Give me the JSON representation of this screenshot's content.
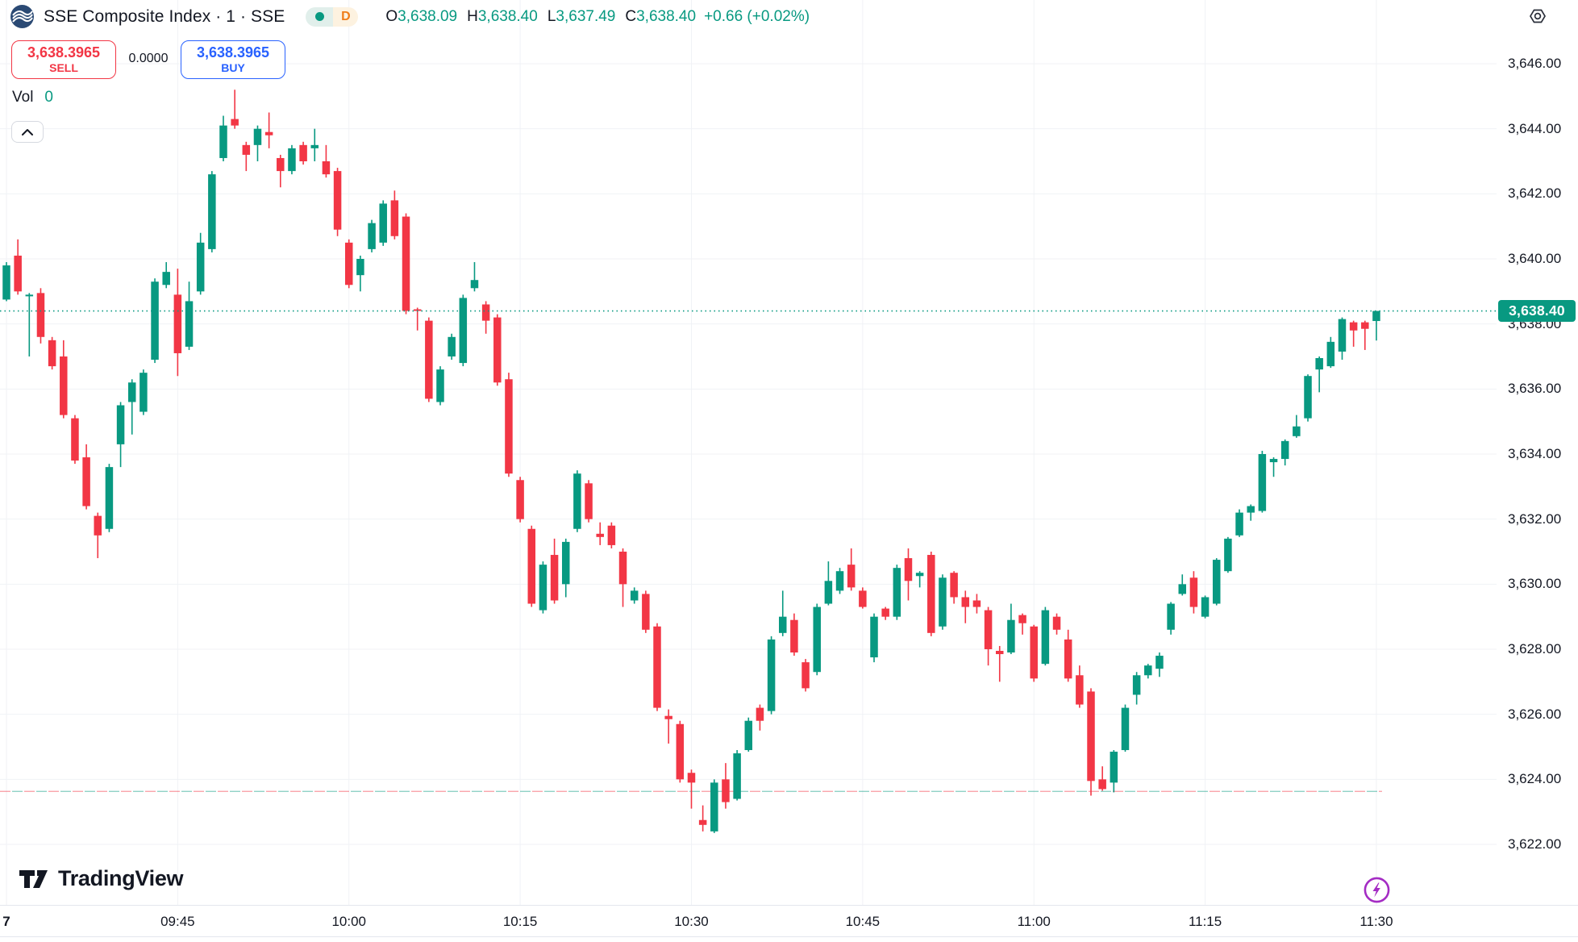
{
  "header": {
    "title": "SSE Composite Index · 1 · SSE",
    "timeframe_badge": "D",
    "ohlc": {
      "o_label": "O",
      "o": "3,638.09",
      "h_label": "H",
      "h": "3,638.40",
      "l_label": "L",
      "l": "3,637.49",
      "c_label": "C",
      "c": "3,638.40",
      "change": "+0.66 (+0.02%)"
    }
  },
  "trade_panel": {
    "sell_price": "3,638.3965",
    "sell_label": "SELL",
    "spread": "0.0000",
    "buy_price": "3,638.3965",
    "buy_label": "BUY"
  },
  "volume": {
    "label": "Vol",
    "value": "0"
  },
  "footer": {
    "brand": "TradingView"
  },
  "colors": {
    "up": "#089981",
    "down": "#f23645",
    "accent_buy": "#2962ff",
    "badge_bg": "#089981",
    "grid": "#f0f2f6",
    "text": "#131722",
    "boost_purple": "#a42cc4",
    "delayed_orange": "#ef7d1a"
  },
  "price_scale": {
    "last_price_label": "3,638.40",
    "ticks": [
      {
        "label": "3,646.00",
        "value": 3646
      },
      {
        "label": "3,644.00",
        "value": 3644
      },
      {
        "label": "3,642.00",
        "value": 3642
      },
      {
        "label": "3,640.00",
        "value": 3640
      },
      {
        "label": "3,638.00",
        "value": 3638
      },
      {
        "label": "3,636.00",
        "value": 3636
      },
      {
        "label": "3,634.00",
        "value": 3634
      },
      {
        "label": "3,632.00",
        "value": 3632
      },
      {
        "label": "3,630.00",
        "value": 3630
      },
      {
        "label": "3,628.00",
        "value": 3628
      },
      {
        "label": "3,626.00",
        "value": 3626
      },
      {
        "label": "3,624.00",
        "value": 3624
      },
      {
        "label": "3,622.00",
        "value": 3622
      }
    ]
  },
  "time_scale": {
    "day_tick": {
      "label": "7",
      "minute": 0
    },
    "ticks": [
      {
        "label": "09:45",
        "minute": 15
      },
      {
        "label": "10:00",
        "minute": 30
      },
      {
        "label": "10:15",
        "minute": 45
      },
      {
        "label": "10:30",
        "minute": 60
      },
      {
        "label": "10:45",
        "minute": 75
      },
      {
        "label": "11:00",
        "minute": 90
      },
      {
        "label": "11:15",
        "minute": 105
      },
      {
        "label": "11:30",
        "minute": 120
      }
    ]
  },
  "chart_data": {
    "type": "candlestick",
    "title": "SSE Composite Index 1-minute",
    "interval": "1m",
    "start_time": "09:30",
    "end_time": "11:30",
    "ylim": [
      3621.3,
      3648
    ],
    "grid": true,
    "last_price": 3638.4,
    "reference_dashed_line": 3623.63,
    "ohlc_order": [
      "open",
      "high",
      "low",
      "close"
    ],
    "candles": [
      [
        3638.75,
        3639.9,
        3638.7,
        3639.8
      ],
      [
        3640.1,
        3640.6,
        3638.9,
        3639.0
      ],
      [
        3638.85,
        3638.95,
        3637.0,
        3638.9
      ],
      [
        3638.95,
        3639.1,
        3637.4,
        3637.6
      ],
      [
        3637.5,
        3637.6,
        3636.6,
        3636.7
      ],
      [
        3637.0,
        3637.5,
        3635.1,
        3635.2
      ],
      [
        3635.1,
        3635.2,
        3633.7,
        3633.8
      ],
      [
        3633.9,
        3634.3,
        3632.3,
        3632.4
      ],
      [
        3632.1,
        3632.2,
        3630.8,
        3631.5
      ],
      [
        3631.7,
        3633.7,
        3631.6,
        3633.6
      ],
      [
        3634.3,
        3635.6,
        3633.6,
        3635.5
      ],
      [
        3635.6,
        3636.3,
        3634.6,
        3636.2
      ],
      [
        3635.3,
        3636.6,
        3635.2,
        3636.5
      ],
      [
        3636.9,
        3639.4,
        3636.8,
        3639.3
      ],
      [
        3639.2,
        3639.9,
        3639.1,
        3639.6
      ],
      [
        3638.9,
        3639.7,
        3636.4,
        3637.1
      ],
      [
        3637.3,
        3639.3,
        3637.2,
        3638.7
      ],
      [
        3639.0,
        3640.8,
        3638.9,
        3640.5
      ],
      [
        3640.3,
        3642.7,
        3640.2,
        3642.6
      ],
      [
        3643.1,
        3644.4,
        3643.0,
        3644.1
      ],
      [
        3644.3,
        3645.2,
        3644.0,
        3644.1
      ],
      [
        3643.5,
        3643.6,
        3642.7,
        3643.2
      ],
      [
        3643.5,
        3644.1,
        3643.0,
        3644.0
      ],
      [
        3643.9,
        3644.5,
        3643.4,
        3643.8
      ],
      [
        3643.1,
        3643.2,
        3642.2,
        3642.7
      ],
      [
        3642.7,
        3643.5,
        3642.6,
        3643.4
      ],
      [
        3643.5,
        3643.6,
        3642.9,
        3643.0
      ],
      [
        3643.4,
        3644.0,
        3643.0,
        3643.5
      ],
      [
        3643.0,
        3643.5,
        3642.5,
        3642.6
      ],
      [
        3642.7,
        3642.8,
        3640.7,
        3640.9
      ],
      [
        3640.5,
        3640.6,
        3639.1,
        3639.2
      ],
      [
        3639.5,
        3640.1,
        3639.0,
        3640.0
      ],
      [
        3640.3,
        3641.2,
        3640.2,
        3641.1
      ],
      [
        3640.5,
        3641.8,
        3640.4,
        3641.7
      ],
      [
        3641.8,
        3642.1,
        3640.6,
        3640.7
      ],
      [
        3641.3,
        3641.4,
        3638.3,
        3638.4
      ],
      [
        3638.45,
        3638.5,
        3637.8,
        3638.4
      ],
      [
        3638.1,
        3638.2,
        3635.6,
        3635.7
      ],
      [
        3635.6,
        3636.7,
        3635.5,
        3636.6
      ],
      [
        3637.0,
        3637.7,
        3636.9,
        3637.6
      ],
      [
        3636.8,
        3638.9,
        3636.7,
        3638.8
      ],
      [
        3639.1,
        3639.9,
        3639.0,
        3639.35
      ],
      [
        3638.6,
        3638.7,
        3637.7,
        3638.1
      ],
      [
        3638.2,
        3638.3,
        3636.1,
        3636.2
      ],
      [
        3636.3,
        3636.5,
        3633.3,
        3633.4
      ],
      [
        3633.2,
        3633.3,
        3631.9,
        3632.0
      ],
      [
        3631.7,
        3631.8,
        3629.3,
        3629.4
      ],
      [
        3629.2,
        3630.7,
        3629.1,
        3630.6
      ],
      [
        3630.9,
        3631.4,
        3629.4,
        3629.5
      ],
      [
        3630.0,
        3631.4,
        3629.6,
        3631.3
      ],
      [
        3631.7,
        3633.5,
        3631.6,
        3633.4
      ],
      [
        3633.1,
        3633.2,
        3631.9,
        3632.0
      ],
      [
        3631.55,
        3631.9,
        3631.2,
        3631.45
      ],
      [
        3631.8,
        3631.9,
        3631.1,
        3631.2
      ],
      [
        3631.0,
        3631.1,
        3629.3,
        3630.0
      ],
      [
        3629.5,
        3629.9,
        3629.4,
        3629.8
      ],
      [
        3629.7,
        3629.8,
        3628.5,
        3628.6
      ],
      [
        3628.7,
        3628.8,
        3626.1,
        3626.2
      ],
      [
        3625.95,
        3626.15,
        3625.1,
        3625.85
      ],
      [
        3625.7,
        3625.8,
        3623.9,
        3624.0
      ],
      [
        3624.2,
        3624.3,
        3623.1,
        3623.9
      ],
      [
        3622.75,
        3623.2,
        3622.4,
        3622.6
      ],
      [
        3622.4,
        3624.0,
        3622.35,
        3623.9
      ],
      [
        3624.0,
        3624.5,
        3623.1,
        3623.3
      ],
      [
        3623.4,
        3624.9,
        3623.35,
        3624.8
      ],
      [
        3624.9,
        3625.9,
        3624.85,
        3625.8
      ],
      [
        3626.2,
        3626.3,
        3625.5,
        3625.8
      ],
      [
        3626.1,
        3628.4,
        3626.0,
        3628.3
      ],
      [
        3628.5,
        3629.8,
        3628.4,
        3629.0
      ],
      [
        3628.9,
        3629.1,
        3627.8,
        3627.9
      ],
      [
        3627.6,
        3627.7,
        3626.7,
        3626.8
      ],
      [
        3627.3,
        3629.4,
        3627.2,
        3629.3
      ],
      [
        3629.4,
        3630.7,
        3629.35,
        3630.1
      ],
      [
        3629.8,
        3630.5,
        3629.7,
        3630.4
      ],
      [
        3630.6,
        3631.1,
        3629.8,
        3629.9
      ],
      [
        3629.8,
        3629.9,
        3629.25,
        3629.3
      ],
      [
        3627.75,
        3629.1,
        3627.6,
        3629.0
      ],
      [
        3629.25,
        3629.3,
        3628.9,
        3629.0
      ],
      [
        3629.0,
        3630.6,
        3628.9,
        3630.5
      ],
      [
        3630.8,
        3631.1,
        3629.5,
        3630.1
      ],
      [
        3630.25,
        3630.4,
        3629.9,
        3630.35
      ],
      [
        3630.9,
        3631.0,
        3628.4,
        3628.5
      ],
      [
        3628.7,
        3630.3,
        3628.6,
        3630.2
      ],
      [
        3630.35,
        3630.4,
        3629.4,
        3629.6
      ],
      [
        3629.6,
        3629.8,
        3628.8,
        3629.3
      ],
      [
        3629.5,
        3629.7,
        3629.1,
        3629.3
      ],
      [
        3629.2,
        3629.3,
        3627.5,
        3628.0
      ],
      [
        3627.95,
        3628.1,
        3627.0,
        3627.85
      ],
      [
        3627.9,
        3629.4,
        3627.85,
        3628.9
      ],
      [
        3629.05,
        3629.1,
        3628.45,
        3628.8
      ],
      [
        3628.7,
        3628.75,
        3627.0,
        3627.1
      ],
      [
        3627.55,
        3629.3,
        3627.5,
        3629.2
      ],
      [
        3629.0,
        3629.1,
        3628.45,
        3628.6
      ],
      [
        3628.3,
        3628.6,
        3627.0,
        3627.1
      ],
      [
        3627.2,
        3627.5,
        3626.2,
        3626.3
      ],
      [
        3626.7,
        3626.8,
        3623.5,
        3623.95
      ],
      [
        3624.0,
        3624.4,
        3623.65,
        3623.7
      ],
      [
        3623.9,
        3624.9,
        3623.6,
        3624.85
      ],
      [
        3624.9,
        3626.3,
        3624.85,
        3626.2
      ],
      [
        3626.6,
        3627.3,
        3626.3,
        3627.2
      ],
      [
        3627.2,
        3627.55,
        3627.1,
        3627.5
      ],
      [
        3627.4,
        3627.9,
        3627.15,
        3627.8
      ],
      [
        3628.6,
        3629.45,
        3628.45,
        3629.4
      ],
      [
        3629.7,
        3630.3,
        3629.65,
        3630.0
      ],
      [
        3630.2,
        3630.4,
        3629.1,
        3629.3
      ],
      [
        3629.0,
        3629.65,
        3628.95,
        3629.6
      ],
      [
        3629.4,
        3630.8,
        3629.35,
        3630.75
      ],
      [
        3630.4,
        3631.45,
        3630.35,
        3631.4
      ],
      [
        3631.5,
        3632.3,
        3631.45,
        3632.2
      ],
      [
        3632.2,
        3632.45,
        3631.95,
        3632.4
      ],
      [
        3632.25,
        3634.1,
        3632.2,
        3634.0
      ],
      [
        3633.75,
        3633.9,
        3633.3,
        3633.85
      ],
      [
        3633.85,
        3634.45,
        3633.65,
        3634.4
      ],
      [
        3634.55,
        3635.2,
        3634.5,
        3634.85
      ],
      [
        3635.1,
        3636.45,
        3635.0,
        3636.4
      ],
      [
        3636.6,
        3637.0,
        3635.9,
        3636.95
      ],
      [
        3636.7,
        3637.6,
        3636.65,
        3637.45
      ],
      [
        3637.15,
        3638.2,
        3636.9,
        3638.15
      ],
      [
        3638.05,
        3638.1,
        3637.3,
        3637.8
      ],
      [
        3638.05,
        3638.1,
        3637.2,
        3637.85
      ],
      [
        3638.09,
        3638.4,
        3637.49,
        3638.4
      ]
    ]
  }
}
